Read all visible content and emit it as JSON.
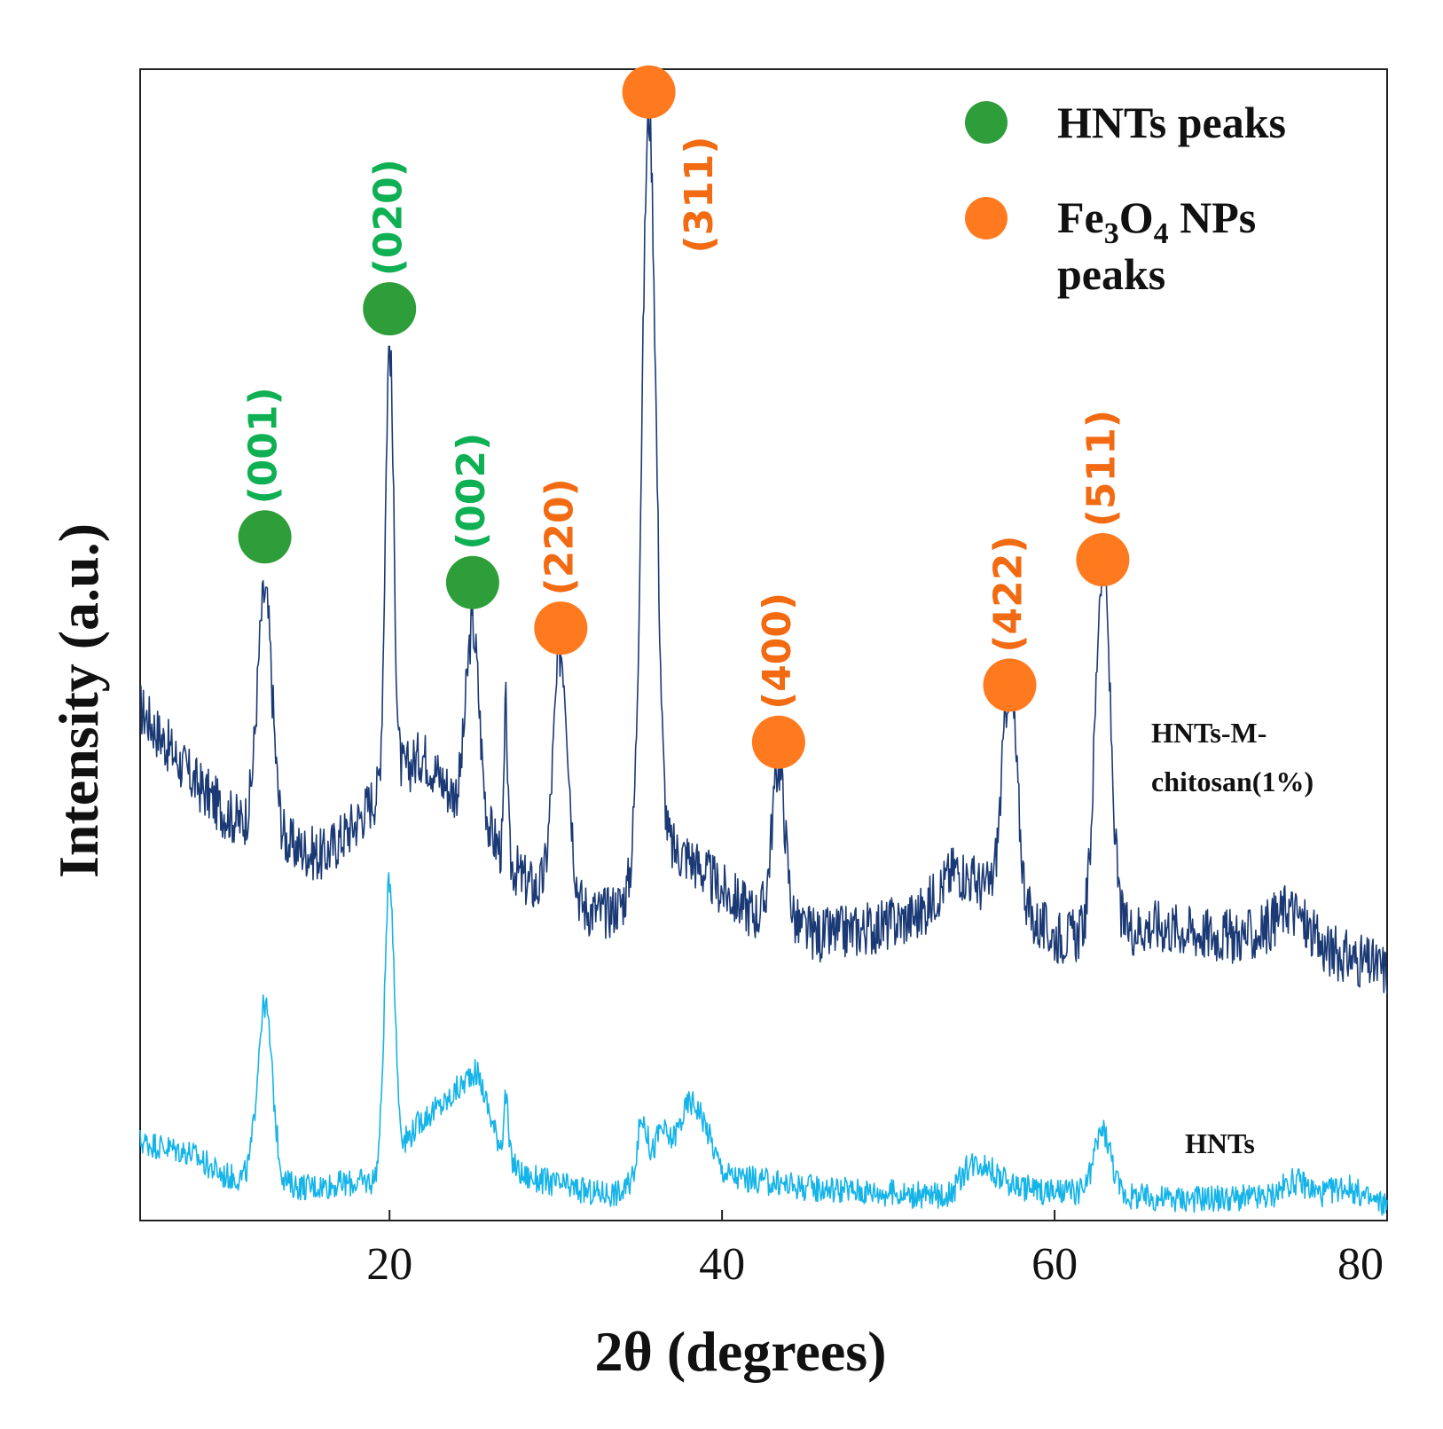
{
  "chart_data": {
    "type": "line",
    "title": "",
    "xlabel": "2θ (degrees)",
    "ylabel": "Intensity (a.u.)",
    "xlim": [
      5,
      80
    ],
    "ylim": [
      0,
      100
    ],
    "xticks": [
      20,
      40,
      60,
      80
    ],
    "y_ticks_shown": false,
    "grid": false,
    "legend": {
      "position": "top-right",
      "entries": [
        {
          "name": "HNTs peaks",
          "color": "#2E9E3A",
          "marker": "circle"
        },
        {
          "name": "Fe3O4 NPs peaks",
          "formula_parts": [
            "Fe",
            "3",
            "O",
            "4",
            " NPs"
          ],
          "line2": "peaks",
          "color": "#FF7A1F",
          "marker": "circle"
        }
      ]
    },
    "series": [
      {
        "name": "HNTs-M-chitosan(1%)",
        "label_lines": [
          "HNTs-M-",
          "chitosan(1%)"
        ],
        "color": "#1B3A75",
        "baseline": [
          [
            5,
            44
          ],
          [
            8,
            38
          ],
          [
            10,
            35
          ],
          [
            12,
            33
          ],
          [
            16,
            31
          ],
          [
            18,
            34
          ],
          [
            19,
            36
          ],
          [
            22,
            40
          ],
          [
            24,
            36
          ],
          [
            26,
            33
          ],
          [
            28,
            29
          ],
          [
            30,
            27
          ],
          [
            33,
            26
          ],
          [
            34,
            27
          ],
          [
            36,
            32
          ],
          [
            38,
            31
          ],
          [
            40,
            28
          ],
          [
            42,
            26
          ],
          [
            46,
            24
          ],
          [
            50,
            25
          ],
          [
            52,
            26
          ],
          [
            54,
            30
          ],
          [
            56,
            28
          ],
          [
            58,
            26
          ],
          [
            60,
            24
          ],
          [
            62,
            24
          ],
          [
            66,
            25
          ],
          [
            70,
            24
          ],
          [
            72,
            24
          ],
          [
            74,
            26
          ],
          [
            76,
            23
          ],
          [
            80,
            21
          ]
        ],
        "peaks": [
          {
            "x": 12.5,
            "height": 54,
            "width": 0.45
          },
          {
            "x": 20.0,
            "height": 76,
            "width": 0.25
          },
          {
            "x": 25.0,
            "height": 51,
            "width": 0.4
          },
          {
            "x": 27.0,
            "height": 44,
            "width": 0.1
          },
          {
            "x": 30.3,
            "height": 49,
            "width": 0.45
          },
          {
            "x": 35.6,
            "height": 96,
            "width": 0.42
          },
          {
            "x": 43.4,
            "height": 39,
            "width": 0.4
          },
          {
            "x": 57.3,
            "height": 46,
            "width": 0.45
          },
          {
            "x": 62.9,
            "height": 57,
            "width": 0.45
          },
          {
            "x": 74.5,
            "height": 26,
            "width": 0.8
          }
        ]
      },
      {
        "name": "HNTs",
        "label_lines": [
          "HNTs"
        ],
        "color": "#15B4E8",
        "baseline": [
          [
            5,
            6
          ],
          [
            8,
            5
          ],
          [
            10,
            3
          ],
          [
            15,
            2
          ],
          [
            19,
            2.5
          ],
          [
            22,
            8
          ],
          [
            24,
            10
          ],
          [
            26,
            7
          ],
          [
            28,
            3
          ],
          [
            32,
            1.5
          ],
          [
            34,
            1.5
          ],
          [
            38,
            7
          ],
          [
            40,
            3
          ],
          [
            45,
            2
          ],
          [
            50,
            1.5
          ],
          [
            54,
            1
          ],
          [
            56,
            3
          ],
          [
            58,
            2
          ],
          [
            60,
            1.5
          ],
          [
            62,
            1.5
          ],
          [
            66,
            1
          ],
          [
            72,
            1
          ],
          [
            76,
            1
          ],
          [
            80,
            0.5
          ]
        ],
        "peaks": [
          {
            "x": 12.5,
            "height": 18,
            "width": 0.45
          },
          {
            "x": 20.0,
            "height": 29,
            "width": 0.3
          },
          {
            "x": 25.2,
            "height": 12,
            "width": 0.6
          },
          {
            "x": 27.0,
            "height": 10,
            "width": 0.12
          },
          {
            "x": 35.2,
            "height": 8,
            "width": 0.3
          },
          {
            "x": 36.3,
            "height": 7,
            "width": 0.3
          },
          {
            "x": 38.5,
            "height": 9,
            "width": 0.8
          },
          {
            "x": 55.0,
            "height": 4,
            "width": 0.8
          },
          {
            "x": 62.9,
            "height": 7,
            "width": 0.5
          },
          {
            "x": 74.5,
            "height": 2.5,
            "width": 0.8
          },
          {
            "x": 77.5,
            "height": 2,
            "width": 0.8
          }
        ]
      }
    ],
    "peak_annotations": [
      {
        "label": "(001)",
        "x": 12.5,
        "group": "HNTs",
        "color": "#0FB054",
        "marker_color": "#2E9E3A",
        "marker_y": 59,
        "label_y": 67
      },
      {
        "label": "(020)",
        "x": 20.0,
        "group": "HNTs",
        "color": "#0FB054",
        "marker_color": "#2E9E3A",
        "marker_y": 79,
        "label_y": 87
      },
      {
        "label": "(002)",
        "x": 25.0,
        "group": "HNTs",
        "color": "#0FB054",
        "marker_color": "#2E9E3A",
        "marker_y": 55,
        "label_y": 63
      },
      {
        "label": "(220)",
        "x": 30.3,
        "group": "Fe3O4",
        "color": "#F26A11",
        "marker_color": "#FF7A1F",
        "marker_y": 51,
        "label_y": 59
      },
      {
        "label": "(311)",
        "x": 35.6,
        "group": "Fe3O4",
        "color": "#F26A11",
        "marker_color": "#FF7A1F",
        "marker_y": 98,
        "label_y": 89,
        "label_dx": 3.8
      },
      {
        "label": "(400)",
        "x": 43.4,
        "group": "Fe3O4",
        "color": "#F26A11",
        "marker_color": "#FF7A1F",
        "marker_y": 41,
        "label_y": 49
      },
      {
        "label": "(422)",
        "x": 57.3,
        "group": "Fe3O4",
        "color": "#F26A11",
        "marker_color": "#FF7A1F",
        "marker_y": 46,
        "label_y": 54
      },
      {
        "label": "(511)",
        "x": 62.9,
        "group": "Fe3O4",
        "color": "#F26A11",
        "marker_color": "#FF7A1F",
        "marker_y": 57,
        "label_y": 65
      }
    ]
  }
}
